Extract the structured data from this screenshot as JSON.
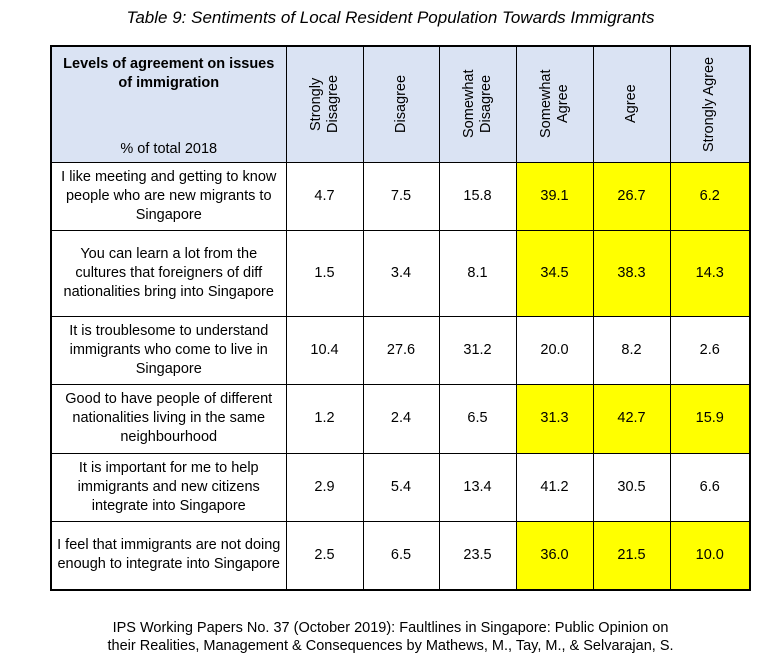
{
  "title": "Table 9: Sentiments of Local Resident Population Towards Immigrants",
  "table": {
    "header": {
      "label": "Levels of agreement on issues of immigration",
      "sub": "% of total 2018",
      "columns": [
        "Strongly Disagree",
        "Disagree",
        "Somewhat Disagree",
        "Somewhat Agree",
        "Agree",
        "Strongly Agree"
      ]
    },
    "rows": [
      {
        "label": "I like meeting and getting to know people who are new migrants to Singapore",
        "values": [
          "4.7",
          "7.5",
          "15.8",
          "39.1",
          "26.7",
          "6.2"
        ]
      },
      {
        "label": "You can learn a lot from the cultures that foreigners of diff nationalities bring into Singapore",
        "values": [
          "1.5",
          "3.4",
          "8.1",
          "34.5",
          "38.3",
          "14.3"
        ]
      },
      {
        "label": "It is troublesome to understand immigrants who come to live in Singapore",
        "values": [
          "10.4",
          "27.6",
          "31.2",
          "20.0",
          "8.2",
          "2.6"
        ]
      },
      {
        "label": "Good to have people of different nationalities living in the same neighbourhood",
        "values": [
          "1.2",
          "2.4",
          "6.5",
          "31.3",
          "42.7",
          "15.9"
        ]
      },
      {
        "label": "It is important for me to help immigrants and new citizens integrate into Singapore",
        "values": [
          "2.9",
          "5.4",
          "13.4",
          "41.2",
          "30.5",
          "6.6"
        ]
      },
      {
        "label": "I feel that immigrants are not doing enough to integrate into Singapore",
        "values": [
          "2.5",
          "6.5",
          "23.5",
          "36.0",
          "21.5",
          "10.0"
        ]
      }
    ]
  },
  "source": [
    "IPS Working Papers No. 37 (October 2019): Faultlines in Singapore: Public Opinion on",
    "their Realities, Management & Consequences by Mathews, M., Tay, M., & Selvarajan, S."
  ]
}
